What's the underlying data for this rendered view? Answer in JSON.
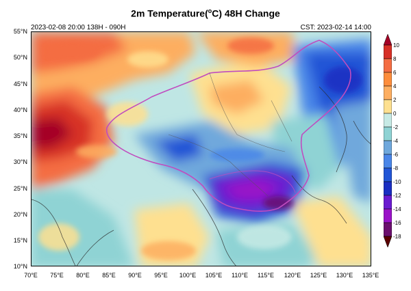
{
  "title_main": "2m Temperature(",
  "title_degree": "o",
  "title_rest": "C) 48H Change",
  "init_info": "2023-02-08 20:00  138H - 090H",
  "valid_info": "CST: 2023-02-14 14:00",
  "axes": {
    "lat_labels": [
      "55°N",
      "50°N",
      "45°N",
      "40°N",
      "35°N",
      "30°N",
      "25°N",
      "20°N",
      "15°N",
      "10°N"
    ],
    "lon_labels": [
      "70°E",
      "75°E",
      "80°E",
      "85°E",
      "90°E",
      "95°E",
      "100°E",
      "105°E",
      "110°E",
      "115°E",
      "120°E",
      "125°E",
      "130°E",
      "135°E"
    ]
  },
  "colorbar": {
    "labels": [
      "10",
      "8",
      "6",
      "4",
      "2",
      "0",
      "-2",
      "-4",
      "-6",
      "-8",
      "-10",
      "-12",
      "-14",
      "-16",
      "-18"
    ],
    "colors": [
      "#a50026",
      "#d73027",
      "#f46d43",
      "#fd8d3c",
      "#fdae61",
      "#fee090",
      "#c7eae5",
      "#8fd3d4",
      "#6fa8dc",
      "#4a86e8",
      "#2255d6",
      "#1a2ec2",
      "#6a1bd0",
      "#9a12c8",
      "#6b0f6e",
      "#5a0000"
    ]
  }
}
